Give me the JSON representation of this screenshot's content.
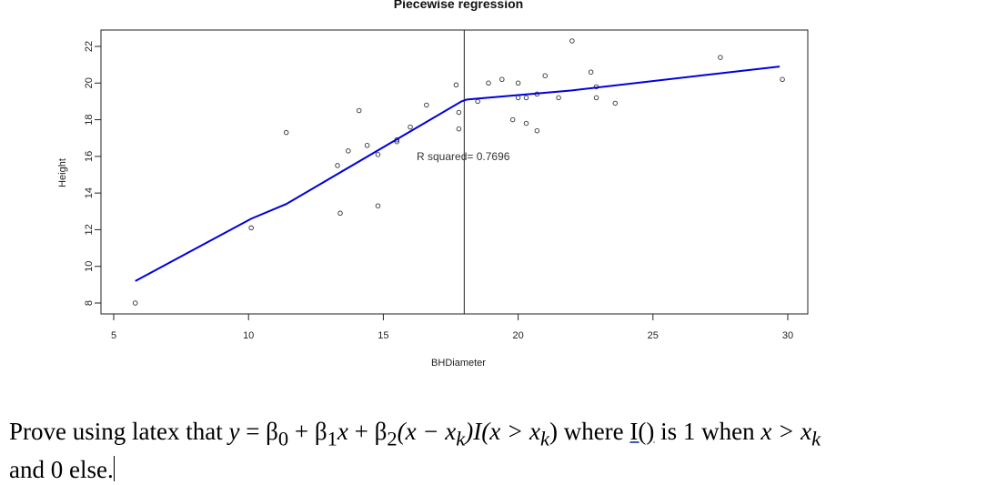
{
  "chart_data": {
    "type": "scatter",
    "title": "Piecewise regression",
    "xlabel": "BHDiameter",
    "ylabel": "Height",
    "xlim": [
      5,
      30
    ],
    "ylim": [
      8,
      22
    ],
    "x_ticks": [
      "5",
      "10",
      "15",
      "20",
      "25",
      "30"
    ],
    "y_ticks": [
      "8",
      "10",
      "12",
      "14",
      "16",
      "18",
      "20",
      "22"
    ],
    "points": [
      [
        5.8,
        8.0
      ],
      [
        10.1,
        12.1
      ],
      [
        11.4,
        17.3
      ],
      [
        13.3,
        15.5
      ],
      [
        13.4,
        12.9
      ],
      [
        13.7,
        16.3
      ],
      [
        14.1,
        18.5
      ],
      [
        14.4,
        16.6
      ],
      [
        14.8,
        13.3
      ],
      [
        14.8,
        16.1
      ],
      [
        15.5,
        16.8
      ],
      [
        15.5,
        16.9
      ],
      [
        16.0,
        17.6
      ],
      [
        16.6,
        18.8
      ],
      [
        17.7,
        19.9
      ],
      [
        17.8,
        18.4
      ],
      [
        17.8,
        17.5
      ],
      [
        18.5,
        19.0
      ],
      [
        18.9,
        20.0
      ],
      [
        19.4,
        20.2
      ],
      [
        19.8,
        18.0
      ],
      [
        20.0,
        19.2
      ],
      [
        20.0,
        20.0
      ],
      [
        20.3,
        19.2
      ],
      [
        20.3,
        17.8
      ],
      [
        20.7,
        19.4
      ],
      [
        20.7,
        17.4
      ],
      [
        21.0,
        20.4
      ],
      [
        21.5,
        19.2
      ],
      [
        22.0,
        22.3
      ],
      [
        22.7,
        20.6
      ],
      [
        22.9,
        19.2
      ],
      [
        22.9,
        19.8
      ],
      [
        23.6,
        18.9
      ],
      [
        27.5,
        21.4
      ],
      [
        29.8,
        20.2
      ]
    ],
    "fit_line": [
      [
        5.8,
        9.2
      ],
      [
        10.1,
        12.6
      ],
      [
        11.4,
        13.4
      ],
      [
        17.9,
        19.0
      ],
      [
        18.1,
        19.1
      ],
      [
        22.0,
        19.6
      ],
      [
        26.7,
        20.4
      ],
      [
        29.7,
        20.9
      ]
    ],
    "breakpoint_x": 18.0,
    "annotation": "R squared= 0.7696",
    "colors": {
      "fit": "#0000dd",
      "points": "#333333",
      "vline": "#222222"
    }
  },
  "document": {
    "prove": "Prove using latex that",
    "y": "y",
    "eq1": "= β",
    "b0": "0",
    "plus1": "+ β",
    "b1": "1",
    "x1": "x",
    "plus2": "+ β",
    "b2": "2",
    "paren_open": "(x − x",
    "k1": "k",
    "paren_close": ")I(x > x",
    "k2": "k",
    "close": ")",
    "where": "where",
    "indicator": "I()",
    "is_one_when": "is 1 when",
    "cond": "x > x",
    "k3": "k",
    "tail": "and 0 else."
  }
}
